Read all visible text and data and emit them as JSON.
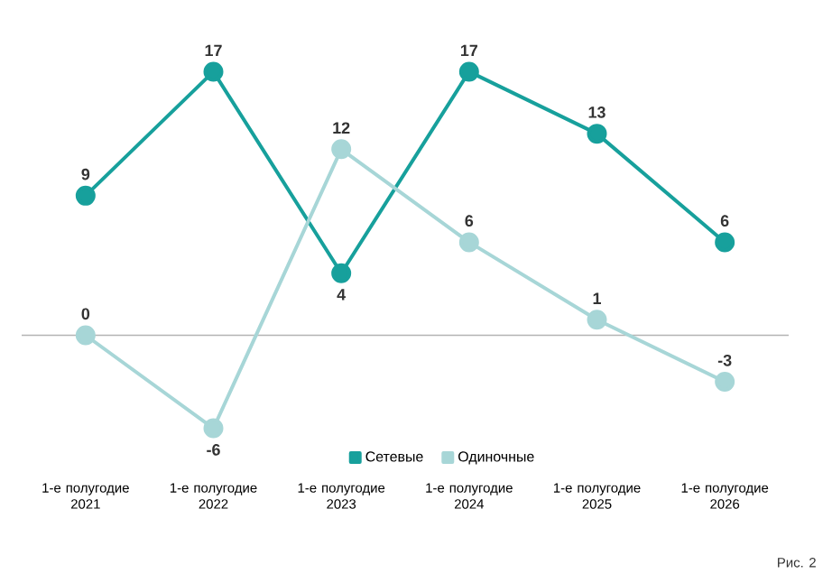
{
  "chart_data": {
    "type": "line",
    "categories": [
      "1-е полугодие 2021",
      "1-е полугодие 2022",
      "1-е полугодие 2023",
      "1-е полугодие 2024",
      "1-е полугодие 2025",
      "1-е полугодие 2026"
    ],
    "series": [
      {
        "name": "Сетевые",
        "color": "#17a09c",
        "values": [
          9,
          17,
          4,
          17,
          13,
          6
        ]
      },
      {
        "name": "Одиночные",
        "color": "#a7d6d7",
        "values": [
          0,
          -6,
          12,
          6,
          1,
          -3
        ]
      }
    ],
    "data_labels": true,
    "marker": "circle",
    "legend": "bottom",
    "ref_lines": [
      {
        "axis": "y",
        "value": 0,
        "color": "#b4b4b4"
      }
    ],
    "annotations": [
      "Рис. 2"
    ]
  }
}
